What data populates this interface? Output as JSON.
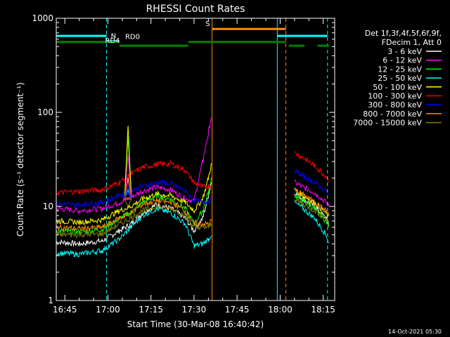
{
  "chart_data": {
    "type": "line",
    "title": "RHESSI Count Rates",
    "xlabel": "Start Time (30-Mar-08 16:40:42)",
    "ylabel": "Count Rate (s⁻¹ detector segment⁻¹)",
    "y_scale": "log",
    "ylim": [
      1,
      1000
    ],
    "y_ticks": [
      "1",
      "10",
      "100",
      "1000"
    ],
    "xlim": [
      "16:42",
      "18:19"
    ],
    "x_ticks": [
      "16:45",
      "17:00",
      "17:15",
      "17:30",
      "17:45",
      "18:00",
      "18:15"
    ],
    "date_stamp": "14-Oct-2021 05:30",
    "legend": {
      "placement": "right",
      "header": [
        "Det 1f,3f,4f,5f,6f,9f,",
        "FDecim 1, Att 0"
      ],
      "entries": [
        {
          "name": "3 - 6 keV",
          "color": "#ffffff"
        },
        {
          "name": "6 - 12 keV",
          "color": "#ff00ff"
        },
        {
          "name": "12 - 25 keV",
          "color": "#00ff00"
        },
        {
          "name": "25 - 50 keV",
          "color": "#00ffff"
        },
        {
          "name": "50 - 100 keV",
          "color": "#ffff00"
        },
        {
          "name": "100 - 300 keV",
          "color": "#ff0000"
        },
        {
          "name": "300 - 800 keV",
          "color": "#0000ff"
        },
        {
          "name": "800 - 7000 keV",
          "color": "#ff8c00"
        },
        {
          "name": "7000 - 15000 keV",
          "color": "#808000"
        }
      ]
    },
    "series": [
      {
        "name": "3 - 6 keV",
        "color": "#ffffff",
        "points": [
          [
            "16:42",
            4.2
          ],
          [
            "16:50",
            4.0
          ],
          [
            "16:58",
            4.3
          ],
          [
            "17:04",
            5.5
          ],
          [
            "17:08",
            6.5
          ],
          [
            "17:12",
            8.5
          ],
          [
            "17:17",
            10.5
          ],
          [
            "17:22",
            9.5
          ],
          [
            "17:27",
            7.5
          ],
          [
            "17:30",
            5.5
          ],
          [
            "17:33",
            7.5
          ],
          [
            "17:35",
            13.0
          ],
          [
            "17:36",
            18.0
          ],
          [
            "17:36.4",
            null
          ],
          [
            "18:05",
            14.0
          ],
          [
            "18:08",
            12.0
          ],
          [
            "18:12",
            10.0
          ],
          [
            "18:16",
            7.5
          ],
          [
            "18:17",
            6.5
          ]
        ]
      },
      {
        "name": "6 - 12 keV",
        "color": "#ff00ff",
        "points": [
          [
            "16:42",
            9.5
          ],
          [
            "16:50",
            9.0
          ],
          [
            "16:58",
            9.5
          ],
          [
            "17:04",
            11.0
          ],
          [
            "17:08",
            12.5
          ],
          [
            "17:12",
            14.5
          ],
          [
            "17:17",
            16.0
          ],
          [
            "17:22",
            15.0
          ],
          [
            "17:27",
            12.0
          ],
          [
            "17:30",
            11.5
          ],
          [
            "17:33",
            30.0
          ],
          [
            "17:35",
            60.0
          ],
          [
            "17:36",
            90.0
          ],
          [
            "17:36.4",
            null
          ],
          [
            "18:05",
            18.0
          ],
          [
            "18:08",
            16.0
          ],
          [
            "18:12",
            14.0
          ],
          [
            "18:16",
            11.0
          ],
          [
            "18:17",
            10.0
          ]
        ]
      },
      {
        "name": "12 - 25 keV",
        "color": "#00ff00",
        "points": [
          [
            "16:42",
            5.5
          ],
          [
            "16:50",
            5.3
          ],
          [
            "16:58",
            5.7
          ],
          [
            "17:04",
            7.5
          ],
          [
            "17:08",
            8.5
          ],
          [
            "17:12",
            11.0
          ],
          [
            "17:17",
            13.0
          ],
          [
            "17:22",
            12.0
          ],
          [
            "17:27",
            9.5
          ],
          [
            "17:30",
            6.5
          ],
          [
            "17:33",
            9.0
          ],
          [
            "17:35",
            14.0
          ],
          [
            "17:36",
            20.0
          ],
          [
            "17:36.4",
            null
          ],
          [
            "18:05",
            13.0
          ],
          [
            "18:08",
            11.5
          ],
          [
            "18:12",
            9.5
          ],
          [
            "18:16",
            7.0
          ],
          [
            "18:17",
            6.0
          ]
        ]
      },
      {
        "name": "25 - 50 keV",
        "color": "#00ffff",
        "points": [
          [
            "16:42",
            3.2
          ],
          [
            "16:50",
            3.1
          ],
          [
            "16:58",
            3.4
          ],
          [
            "17:04",
            4.5
          ],
          [
            "17:08",
            6.0
          ],
          [
            "17:12",
            8.0
          ],
          [
            "17:17",
            9.5
          ],
          [
            "17:22",
            8.5
          ],
          [
            "17:27",
            6.5
          ],
          [
            "17:30",
            3.8
          ],
          [
            "17:33",
            4.0
          ],
          [
            "17:35",
            4.5
          ],
          [
            "17:36",
            5.0
          ],
          [
            "17:36.4",
            null
          ],
          [
            "18:05",
            11.0
          ],
          [
            "18:08",
            9.5
          ],
          [
            "18:12",
            7.5
          ],
          [
            "18:16",
            5.0
          ],
          [
            "18:17",
            4.0
          ]
        ]
      },
      {
        "name": "50 - 100 keV",
        "color": "#ffff00",
        "points": [
          [
            "16:42",
            7.0
          ],
          [
            "16:50",
            6.8
          ],
          [
            "16:58",
            7.2
          ],
          [
            "17:04",
            9.0
          ],
          [
            "17:08",
            10.0
          ],
          [
            "17:12",
            12.0
          ],
          [
            "17:17",
            13.5
          ],
          [
            "17:22",
            13.0
          ],
          [
            "17:27",
            11.0
          ],
          [
            "17:30",
            9.0
          ],
          [
            "17:33",
            12.0
          ],
          [
            "17:35",
            20.0
          ],
          [
            "17:36",
            28.0
          ],
          [
            "17:36.4",
            null
          ],
          [
            "18:05",
            15.0
          ],
          [
            "18:08",
            13.0
          ],
          [
            "18:12",
            11.0
          ],
          [
            "18:16",
            8.5
          ],
          [
            "18:17",
            7.5
          ]
        ]
      },
      {
        "name": "100 - 300 keV",
        "color": "#ff0000",
        "points": [
          [
            "16:42",
            14.0
          ],
          [
            "16:50",
            14.5
          ],
          [
            "16:58",
            15.0
          ],
          [
            "17:04",
            18.0
          ],
          [
            "17:08",
            22.0
          ],
          [
            "17:12",
            26.0
          ],
          [
            "17:17",
            28.0
          ],
          [
            "17:22",
            28.5
          ],
          [
            "17:27",
            24.0
          ],
          [
            "17:30",
            18.0
          ],
          [
            "17:33",
            16.0
          ],
          [
            "17:35",
            16.5
          ],
          [
            "17:36",
            17.0
          ],
          [
            "17:36.4",
            null
          ],
          [
            "18:05",
            37.0
          ],
          [
            "18:08",
            33.0
          ],
          [
            "18:12",
            27.0
          ],
          [
            "18:16",
            21.0
          ],
          [
            "18:17",
            19.0
          ]
        ]
      },
      {
        "name": "300 - 800 keV",
        "color": "#0000ff",
        "points": [
          [
            "16:42",
            10.5
          ],
          [
            "16:50",
            10.5
          ],
          [
            "16:58",
            11.0
          ],
          [
            "17:04",
            13.0
          ],
          [
            "17:08",
            14.5
          ],
          [
            "17:12",
            16.5
          ],
          [
            "17:17",
            18.0
          ],
          [
            "17:22",
            17.5
          ],
          [
            "17:27",
            14.5
          ],
          [
            "17:30",
            11.5
          ],
          [
            "17:33",
            11.0
          ],
          [
            "17:35",
            11.5
          ],
          [
            "17:36",
            12.0
          ],
          [
            "17:36.4",
            null
          ],
          [
            "18:05",
            24.0
          ],
          [
            "18:08",
            21.0
          ],
          [
            "18:12",
            18.0
          ],
          [
            "18:16",
            14.5
          ],
          [
            "18:17",
            13.0
          ]
        ]
      },
      {
        "name": "800 - 7000 keV",
        "color": "#ff8c00",
        "points": [
          [
            "16:42",
            6.0
          ],
          [
            "16:50",
            5.8
          ],
          [
            "16:58",
            6.0
          ],
          [
            "17:04",
            7.5
          ],
          [
            "17:08",
            8.5
          ],
          [
            "17:12",
            10.5
          ],
          [
            "17:17",
            11.5
          ],
          [
            "17:22",
            11.0
          ],
          [
            "17:27",
            9.0
          ],
          [
            "17:30",
            6.5
          ],
          [
            "17:33",
            6.5
          ],
          [
            "17:35",
            6.5
          ],
          [
            "17:36",
            7.0
          ],
          [
            "17:36.4",
            null
          ],
          [
            "18:05",
            15.0
          ],
          [
            "18:08",
            13.5
          ],
          [
            "18:12",
            11.0
          ],
          [
            "18:16",
            9.0
          ],
          [
            "18:17",
            8.0
          ]
        ]
      },
      {
        "name": "7000 - 15000 keV",
        "color": "#808000",
        "points": [
          [
            "16:42",
            5.0
          ],
          [
            "16:50",
            5.0
          ],
          [
            "16:58",
            5.1
          ],
          [
            "17:04",
            6.5
          ],
          [
            "17:08",
            7.5
          ],
          [
            "17:12",
            9.0
          ],
          [
            "17:17",
            10.0
          ],
          [
            "17:22",
            9.5
          ],
          [
            "17:27",
            8.0
          ],
          [
            "17:30",
            6.0
          ],
          [
            "17:33",
            6.0
          ],
          [
            "17:35",
            6.0
          ],
          [
            "17:36",
            6.5
          ],
          [
            "17:36.4",
            null
          ],
          [
            "18:05",
            12.0
          ],
          [
            "18:08",
            10.5
          ],
          [
            "18:12",
            9.0
          ],
          [
            "18:16",
            7.5
          ],
          [
            "18:17",
            6.5
          ]
        ]
      }
    ],
    "spikes": [
      {
        "time": "17:07",
        "series_peaks": [
          [
            "3 - 6 keV",
            20
          ],
          [
            "6 - 12 keV",
            35
          ],
          [
            "12 - 25 keV",
            55
          ],
          [
            "25 - 50 keV",
            15
          ],
          [
            "50 - 100 keV",
            72
          ],
          [
            "100 - 300 keV",
            22
          ],
          [
            "300 - 800 keV",
            16
          ],
          [
            "800 - 7000 keV",
            12
          ],
          [
            "7000 - 15000 keV",
            10
          ]
        ]
      }
    ],
    "vertical_markers": [
      {
        "time": "16:42",
        "color": "#00ffff",
        "style": "solid"
      },
      {
        "time": "16:59.5",
        "color": "#00ffff",
        "style": "dashed"
      },
      {
        "time": "17:36.3",
        "color": "#ff8c00",
        "style": "solid"
      },
      {
        "time": "17:59",
        "color": "#00ffff",
        "style": "solid"
      },
      {
        "time": "18:02",
        "color": "#ff8c00",
        "style": "dashed"
      },
      {
        "time": "18:16.5",
        "color": "#00ffff",
        "style": "dashed"
      }
    ],
    "state_bars": [
      {
        "label": "",
        "color": "#00ffff",
        "level": 650,
        "segments": [
          [
            "16:42",
            "16:59.5"
          ],
          [
            "17:59",
            "18:16.5"
          ]
        ]
      },
      {
        "label": "N",
        "color": "#00ffff",
        "level": 570,
        "label_time": "17:01",
        "segments": [
          [
            "16:59.5",
            "17:04"
          ]
        ]
      },
      {
        "label": "RD0",
        "color": "#008000",
        "level": 560,
        "label_time": "17:06",
        "segments": [
          [
            "16:42",
            "17:04"
          ],
          [
            "17:28",
            "18:02"
          ]
        ]
      },
      {
        "label": "RD4",
        "color": "#008000",
        "level": 510,
        "label_time": "16:59",
        "segments": [
          [
            "17:04",
            "17:28"
          ],
          [
            "18:03",
            "18:08.5"
          ],
          [
            "18:13",
            "18:17"
          ]
        ]
      },
      {
        "label": "S",
        "color": "#ff8c00",
        "level": 770,
        "label_time": "17:34",
        "segments": [
          [
            "17:36.3",
            "18:02"
          ]
        ]
      }
    ]
  }
}
